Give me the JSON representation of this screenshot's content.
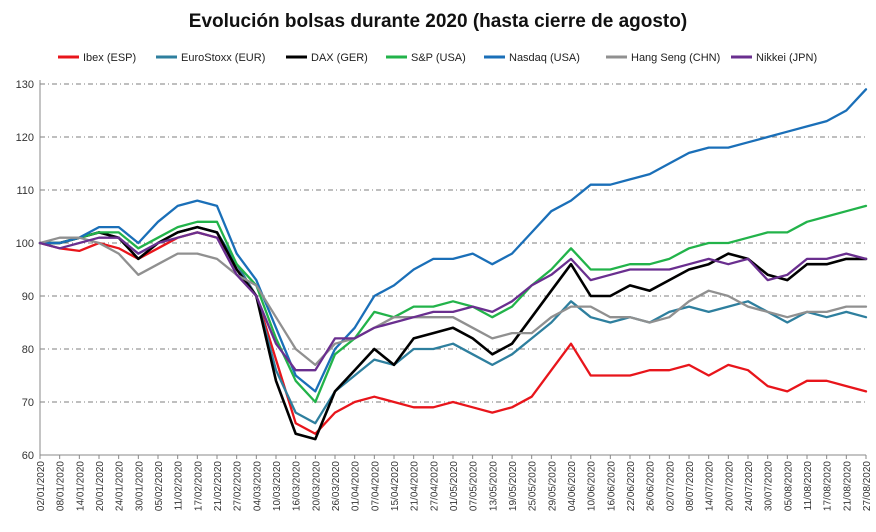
{
  "chart_data": {
    "type": "line",
    "title": "Evolución bolsas durante 2020 (hasta cierre de agosto)",
    "xlabel": "",
    "ylabel": "",
    "ylim": [
      60,
      130
    ],
    "yticks": [
      60,
      70,
      80,
      90,
      100,
      110,
      120,
      130
    ],
    "grid": "horizontal dashed",
    "legend_position": "top",
    "x": [
      "02/01/2020",
      "08/01/2020",
      "14/01/2020",
      "20/01/2020",
      "24/01/2020",
      "30/01/2020",
      "05/02/2020",
      "11/02/2020",
      "17/02/2020",
      "21/02/2020",
      "27/02/2020",
      "04/03/2020",
      "10/03/2020",
      "16/03/2020",
      "20/03/2020",
      "26/03/2020",
      "01/04/2020",
      "07/04/2020",
      "15/04/2020",
      "21/04/2020",
      "27/04/2020",
      "01/05/2020",
      "07/05/2020",
      "13/05/2020",
      "19/05/2020",
      "25/05/2020",
      "29/05/2020",
      "04/06/2020",
      "10/06/2020",
      "16/06/2020",
      "22/06/2020",
      "26/06/2020",
      "02/07/2020",
      "08/07/2020",
      "14/07/2020",
      "20/07/2020",
      "24/07/2020",
      "30/07/2020",
      "05/08/2020",
      "11/08/2020",
      "17/08/2020",
      "21/08/2020",
      "27/08/2020"
    ],
    "series": [
      {
        "name": "Ibex (ESP)",
        "color": "#e8151b",
        "values": [
          100,
          99,
          98.5,
          100,
          99,
          97,
          99,
          101,
          102,
          101,
          96,
          90,
          78,
          66,
          64,
          68,
          70,
          71,
          70,
          69,
          69,
          70,
          69,
          68,
          69,
          71,
          76,
          81,
          75,
          75,
          75,
          76,
          76,
          77,
          75,
          77,
          76,
          73,
          72,
          74,
          74,
          73,
          72
        ]
      },
      {
        "name": "EuroStoxx (EUR)",
        "color": "#2e7f9e",
        "values": [
          100,
          100,
          101,
          102,
          101,
          98,
          100,
          102,
          103,
          102,
          96,
          90,
          76,
          68,
          66,
          72,
          75,
          78,
          77,
          80,
          80,
          81,
          79,
          77,
          79,
          82,
          85,
          89,
          86,
          85,
          86,
          85,
          87,
          88,
          87,
          88,
          89,
          87,
          85,
          87,
          86,
          87,
          86
        ]
      },
      {
        "name": "DAX (GER)",
        "color": "#000000",
        "values": [
          100,
          100,
          101,
          102,
          101,
          97,
          100,
          102,
          103,
          102,
          95,
          90,
          74,
          64,
          63,
          72,
          76,
          80,
          77,
          82,
          83,
          84,
          82,
          79,
          81,
          86,
          91,
          96,
          90,
          90,
          92,
          91,
          93,
          95,
          96,
          98,
          97,
          94,
          93,
          96,
          96,
          97,
          97
        ]
      },
      {
        "name": "S&P (USA)",
        "color": "#22b34a",
        "values": [
          100,
          100,
          101,
          102,
          102,
          99,
          101,
          103,
          104,
          104,
          96,
          92,
          82,
          74,
          70,
          79,
          82,
          87,
          86,
          88,
          88,
          89,
          88,
          86,
          88,
          92,
          95,
          99,
          95,
          95,
          96,
          96,
          97,
          99,
          100,
          100,
          101,
          102,
          102,
          104,
          105,
          106,
          107
        ]
      },
      {
        "name": "Nasdaq (USA)",
        "color": "#1a6fb8",
        "values": [
          100,
          100,
          101,
          103,
          103,
          100,
          104,
          107,
          108,
          107,
          98,
          93,
          84,
          75,
          72,
          80,
          84,
          90,
          92,
          95,
          97,
          97,
          98,
          96,
          98,
          102,
          106,
          108,
          111,
          111,
          112,
          113,
          115,
          117,
          118,
          118,
          119,
          120,
          121,
          122,
          123,
          125,
          129
        ]
      },
      {
        "name": "Hang Seng (CHN)",
        "color": "#909090",
        "values": [
          100,
          101,
          101,
          100,
          98,
          94,
          96,
          98,
          98,
          97,
          94,
          92,
          86,
          80,
          77,
          81,
          82,
          84,
          86,
          86,
          86,
          86,
          84,
          82,
          83,
          83,
          86,
          88,
          88,
          86,
          86,
          85,
          86,
          89,
          91,
          90,
          88,
          87,
          86,
          87,
          87,
          88,
          88
        ]
      },
      {
        "name": "Nikkei (JPN)",
        "color": "#6a2f8f",
        "values": [
          100,
          99,
          100,
          101,
          101,
          98,
          100,
          101,
          102,
          101,
          94,
          90,
          81,
          76,
          76,
          82,
          82,
          84,
          85,
          86,
          87,
          87,
          88,
          87,
          89,
          92,
          94,
          97,
          93,
          94,
          95,
          95,
          95,
          96,
          97,
          96,
          97,
          93,
          94,
          97,
          97,
          98,
          97
        ]
      }
    ]
  }
}
